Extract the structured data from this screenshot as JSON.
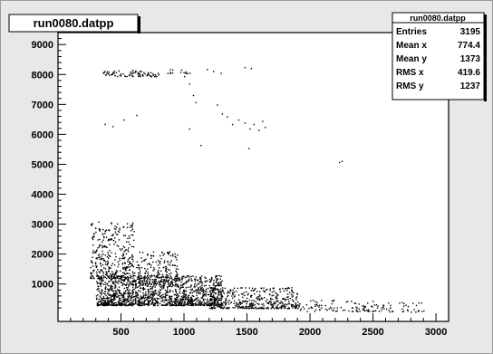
{
  "chart_data": {
    "type": "scatter",
    "title": "run0080.datpp",
    "xlim": [
      0,
      3100
    ],
    "ylim": [
      -250,
      9400
    ],
    "x_ticks": [
      500,
      1000,
      1500,
      2000,
      2500,
      3000
    ],
    "y_ticks": [
      1000,
      2000,
      3000,
      4000,
      5000,
      6000,
      7000,
      8000,
      9000
    ],
    "grid": false,
    "stats_box": {
      "title": "run0080.datpp",
      "placement": "top-right",
      "rows": [
        {
          "label": "Entries",
          "value": "3195"
        },
        {
          "label": "Mean x",
          "value": "774.4"
        },
        {
          "label": "Mean y",
          "value": "1373"
        },
        {
          "label": "RMS x",
          "value": "419.6"
        },
        {
          "label": "RMS y",
          "value": "1237"
        }
      ]
    },
    "outliers": [
      [
        1180,
        8180
      ],
      [
        1230,
        8120
      ],
      [
        1290,
        8060
      ],
      [
        1000,
        7950
      ],
      [
        1040,
        7700
      ],
      [
        1070,
        7320
      ],
      [
        1090,
        7080
      ],
      [
        1260,
        7000
      ],
      [
        1300,
        6700
      ],
      [
        1340,
        6600
      ],
      [
        1380,
        6350
      ],
      [
        1430,
        6500
      ],
      [
        1480,
        6400
      ],
      [
        1520,
        6200
      ],
      [
        1550,
        6350
      ],
      [
        1590,
        6150
      ],
      [
        1620,
        6450
      ],
      [
        1640,
        6250
      ],
      [
        370,
        6350
      ],
      [
        430,
        6280
      ],
      [
        520,
        6500
      ],
      [
        620,
        6650
      ],
      [
        1130,
        5650
      ],
      [
        1510,
        5550
      ],
      [
        2230,
        5080
      ],
      [
        2250,
        5120
      ],
      [
        1480,
        8250
      ],
      [
        1530,
        8220
      ],
      [
        1040,
        6200
      ]
    ],
    "clusters": [
      {
        "x": [
          300,
          1300
        ],
        "y": [
          300,
          1300
        ],
        "count": 1400
      },
      {
        "x": [
          250,
          600
        ],
        "y": [
          1200,
          3100
        ],
        "count": 320
      },
      {
        "x": [
          500,
          950
        ],
        "y": [
          1000,
          2100
        ],
        "count": 260
      },
      {
        "x": [
          1200,
          1900
        ],
        "y": [
          200,
          900
        ],
        "count": 420
      },
      {
        "x": [
          1900,
          2500
        ],
        "y": [
          100,
          500
        ],
        "count": 90
      },
      {
        "x": [
          2500,
          2900
        ],
        "y": [
          80,
          400
        ],
        "count": 45
      },
      {
        "x": [
          350,
          800
        ],
        "y": [
          7950,
          8150
        ],
        "count": 80
      },
      {
        "x": [
          850,
          1050
        ],
        "y": [
          8050,
          8200
        ],
        "count": 14
      }
    ]
  }
}
